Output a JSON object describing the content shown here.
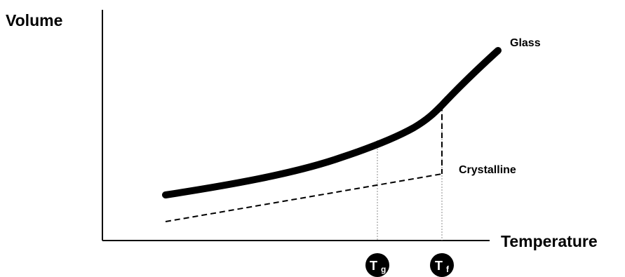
{
  "diagram": {
    "y_axis_label": "Volume",
    "x_axis_label": "Temperature",
    "curves": {
      "glass_label": "Glass",
      "crystalline_label": "Crystalline"
    },
    "markers": {
      "tg": {
        "main": "T",
        "sub": "g"
      },
      "tf": {
        "main": "T",
        "sub": "f"
      }
    },
    "colors": {
      "line": "#000000",
      "guide": "#8c8c8c",
      "marker_fill": "#000000",
      "marker_text": "#ffffff",
      "background": "#ffffff"
    }
  }
}
